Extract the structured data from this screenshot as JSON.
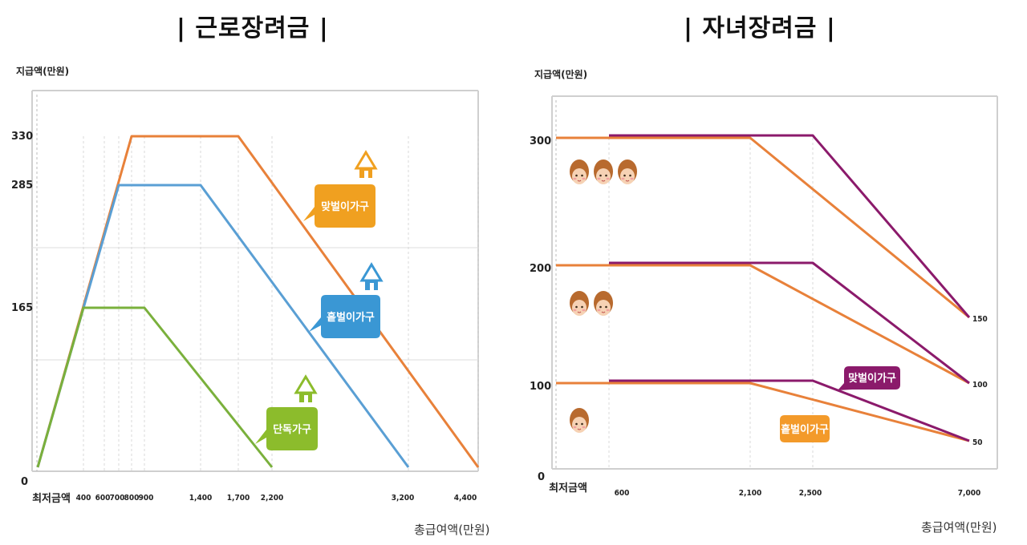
{
  "chart_data": [
    {
      "type": "line",
      "title": "| 근로장려금 |",
      "ylabel": "지급액(만원)",
      "xlabel": "총급여액(만원)",
      "x_tick_labels": [
        "최저금액",
        "400",
        "600",
        "700",
        "800",
        "900",
        "1,400",
        "1,700",
        "2,200",
        "3,200",
        "4,400"
      ],
      "y_tick_labels": [
        "0",
        "165",
        "285",
        "330"
      ],
      "series": [
        {
          "name": "맞벌이가구",
          "color": "#e8813a",
          "points": [
            [
              0,
              0
            ],
            [
              800,
              330
            ],
            [
              1700,
              330
            ],
            [
              4400,
              0
            ]
          ]
        },
        {
          "name": "홑벌이가구",
          "color": "#5a9fd4",
          "points": [
            [
              0,
              0
            ],
            [
              700,
              285
            ],
            [
              1400,
              285
            ],
            [
              3200,
              0
            ]
          ]
        },
        {
          "name": "단독가구",
          "color": "#7ab03c",
          "points": [
            [
              0,
              0
            ],
            [
              400,
              165
            ],
            [
              900,
              165
            ],
            [
              2200,
              0
            ]
          ]
        }
      ]
    },
    {
      "type": "line",
      "title": "| 자녀장려금 |",
      "ylabel": "지급액(만원)",
      "xlabel": "총급여액(만원)",
      "x_tick_labels": [
        "최저금액",
        "600",
        "2,100",
        "2,500",
        "7,000"
      ],
      "y_tick_labels": [
        "0",
        "100",
        "200",
        "300"
      ],
      "end_labels": [
        "150",
        "100",
        "50"
      ],
      "series": [
        {
          "name": "맞벌이가구",
          "color": "#8b1a6b",
          "groups": [
            {
              "children": 3,
              "points": [
                [
                  600,
                  300
                ],
                [
                  2500,
                  300
                ],
                [
                  7000,
                  150
                ]
              ]
            },
            {
              "children": 2,
              "points": [
                [
                  600,
                  200
                ],
                [
                  2500,
                  200
                ],
                [
                  7000,
                  100
                ]
              ]
            },
            {
              "children": 1,
              "points": [
                [
                  600,
                  100
                ],
                [
                  2500,
                  100
                ],
                [
                  7000,
                  50
                ]
              ]
            }
          ]
        },
        {
          "name": "홑벌이가구",
          "color": "#e8813a",
          "groups": [
            {
              "children": 3,
              "points": [
                [
                  0,
                  300
                ],
                [
                  2100,
                  300
                ],
                [
                  7000,
                  150
                ]
              ]
            },
            {
              "children": 2,
              "points": [
                [
                  0,
                  200
                ],
                [
                  2100,
                  200
                ],
                [
                  7000,
                  100
                ]
              ]
            },
            {
              "children": 1,
              "points": [
                [
                  0,
                  100
                ],
                [
                  2100,
                  100
                ],
                [
                  7000,
                  50
                ]
              ]
            }
          ]
        }
      ]
    }
  ],
  "colors": {
    "orange": "#e8813a",
    "blue": "#5a9fd4",
    "green": "#7ab03c",
    "purple": "#8b1a6b",
    "bubble_yellow": "#f0a020",
    "bubble_blue": "#3a97d4",
    "bubble_green": "#8cbc2c",
    "bubble_orange": "#f39a2a",
    "bubble_purple": "#8b1a6b"
  },
  "icons": [
    "house-icon",
    "child-face-icon"
  ]
}
